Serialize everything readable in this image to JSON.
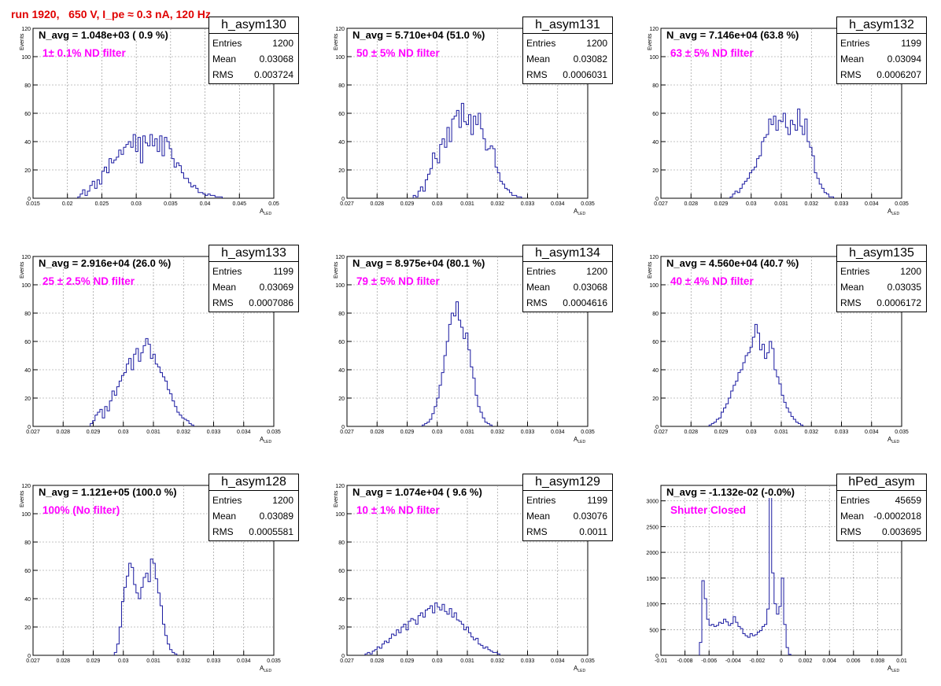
{
  "run_title": "run 1920,   650 V, I_pe ≈ 0.3 nA, 120 Hz",
  "colors": {
    "histogram": "#1a1aa0",
    "note": "#ff00ff",
    "title": "#e00000"
  },
  "chart_data": [
    {
      "type": "bar",
      "name": "h_asym130",
      "navg": "N_avg = 1.048e+03 ( 0.9 %)",
      "note": "1± 0.1% ND filter",
      "stats": {
        "entries": "1200",
        "mean": "0.03068",
        "rms": "0.003724"
      },
      "xlim": [
        0.015,
        0.05
      ],
      "ylim": [
        0,
        120
      ],
      "xticks": [
        "0.015",
        "0.02",
        "0.025",
        "0.03",
        "0.035",
        "0.04",
        "0.045",
        "0.05"
      ],
      "yticks": [
        "0",
        "20",
        "40",
        "60",
        "80",
        "100",
        "120"
      ],
      "xlabel": "A",
      "xlabel_sub": "LED",
      "ylabel": "Events",
      "bin_start": 0.0215,
      "bin_width": 0.00035,
      "values": [
        1,
        3,
        6,
        2,
        5,
        9,
        12,
        7,
        13,
        10,
        19,
        22,
        18,
        28,
        25,
        27,
        29,
        34,
        31,
        36,
        38,
        40,
        36,
        45,
        33,
        43,
        25,
        44,
        39,
        37,
        45,
        37,
        42,
        33,
        44,
        30,
        43,
        40,
        35,
        28,
        22,
        25,
        23,
        18,
        14,
        14,
        11,
        8,
        9,
        7,
        4,
        4,
        3,
        2,
        3,
        2,
        2,
        1,
        1,
        1
      ]
    },
    {
      "type": "bar",
      "name": "h_asym131",
      "navg": "N_avg = 5.710e+04 (51.0 %)",
      "note": "50 ± 5% ND filter",
      "stats": {
        "entries": "1200",
        "mean": "0.03082",
        "rms": "0.0006031"
      },
      "xlim": [
        0.027,
        0.035
      ],
      "ylim": [
        0,
        120
      ],
      "xticks": [
        "0.027",
        "0.028",
        "0.029",
        "0.03",
        "0.031",
        "0.032",
        "0.033",
        "0.034",
        "0.035"
      ],
      "yticks": [
        "0",
        "20",
        "40",
        "60",
        "80",
        "100",
        "120"
      ],
      "xlabel": "A",
      "xlabel_sub": "LED",
      "ylabel": "Events",
      "bin_start": 0.0292,
      "bin_width": 8e-05,
      "values": [
        2,
        1,
        5,
        8,
        5,
        13,
        17,
        21,
        32,
        28,
        25,
        38,
        42,
        36,
        50,
        40,
        56,
        58,
        62,
        50,
        67,
        54,
        52,
        59,
        45,
        58,
        52,
        60,
        49,
        42,
        34,
        35,
        37,
        35,
        22,
        18,
        12,
        10,
        7,
        6,
        4,
        2,
        2,
        1,
        1
      ]
    },
    {
      "type": "bar",
      "name": "h_asym132",
      "navg": "N_avg = 7.146e+04 (63.8 %)",
      "note": "63 ± 5% ND filter",
      "stats": {
        "entries": "1199",
        "mean": "0.03094",
        "rms": "0.0006207"
      },
      "xlim": [
        0.027,
        0.035
      ],
      "ylim": [
        0,
        120
      ],
      "xticks": [
        "0.027",
        "0.028",
        "0.029",
        "0.03",
        "0.031",
        "0.032",
        "0.033",
        "0.034",
        "0.035"
      ],
      "yticks": [
        "0",
        "20",
        "40",
        "60",
        "80",
        "100",
        "120"
      ],
      "xlabel": "A",
      "xlabel_sub": "LED",
      "ylabel": "Events",
      "bin_start": 0.0293,
      "bin_width": 8e-05,
      "values": [
        1,
        3,
        5,
        4,
        7,
        10,
        12,
        14,
        18,
        20,
        22,
        28,
        30,
        40,
        43,
        45,
        56,
        52,
        58,
        48,
        55,
        54,
        60,
        50,
        45,
        55,
        52,
        48,
        63,
        51,
        45,
        56,
        40,
        36,
        30,
        18,
        14,
        10,
        7,
        4,
        3,
        1,
        1
      ]
    },
    {
      "type": "bar",
      "name": "h_asym133",
      "navg": "N_avg = 2.916e+04 (26.0 %)",
      "note": "25 ± 2.5% ND filter",
      "stats": {
        "entries": "1199",
        "mean": "0.03069",
        "rms": "0.0007086"
      },
      "xlim": [
        0.027,
        0.035
      ],
      "ylim": [
        0,
        120
      ],
      "xticks": [
        "0.027",
        "0.028",
        "0.029",
        "0.03",
        "0.031",
        "0.032",
        "0.033",
        "0.034",
        "0.035"
      ],
      "yticks": [
        "0",
        "20",
        "40",
        "60",
        "80",
        "100",
        "120"
      ],
      "xlabel": "A",
      "xlabel_sub": "LED",
      "ylabel": "Events",
      "bin_start": 0.0289,
      "bin_width": 8e-05,
      "values": [
        2,
        4,
        8,
        10,
        12,
        6,
        14,
        11,
        18,
        25,
        22,
        28,
        32,
        36,
        38,
        44,
        48,
        40,
        51,
        55,
        46,
        52,
        57,
        62,
        58,
        48,
        51,
        44,
        42,
        38,
        35,
        32,
        26,
        23,
        18,
        14,
        10,
        8,
        6,
        5,
        4,
        2,
        1
      ]
    },
    {
      "type": "bar",
      "name": "h_asym134",
      "navg": "N_avg = 8.975e+04 (80.1 %)",
      "note": "79 ± 5% ND filter",
      "stats": {
        "entries": "1200",
        "mean": "0.03068",
        "rms": "0.0004616"
      },
      "xlim": [
        0.027,
        0.035
      ],
      "ylim": [
        0,
        120
      ],
      "xticks": [
        "0.027",
        "0.028",
        "0.029",
        "0.03",
        "0.031",
        "0.032",
        "0.033",
        "0.034",
        "0.035"
      ],
      "yticks": [
        "0",
        "20",
        "40",
        "60",
        "80",
        "100",
        "120"
      ],
      "xlabel": "A",
      "xlabel_sub": "LED",
      "ylabel": "Events",
      "bin_start": 0.0295,
      "bin_width": 8e-05,
      "values": [
        1,
        2,
        3,
        5,
        9,
        14,
        20,
        29,
        38,
        50,
        60,
        72,
        80,
        78,
        88,
        75,
        70,
        62,
        66,
        54,
        42,
        34,
        22,
        14,
        10,
        6,
        3,
        2,
        1
      ]
    },
    {
      "type": "bar",
      "name": "h_asym135",
      "navg": "N_avg = 4.560e+04 (40.7 %)",
      "note": "40 ± 4% ND filter",
      "stats": {
        "entries": "1200",
        "mean": "0.03035",
        "rms": "0.0006172"
      },
      "xlim": [
        0.027,
        0.035
      ],
      "ylim": [
        0,
        120
      ],
      "xticks": [
        "0.027",
        "0.028",
        "0.029",
        "0.03",
        "0.031",
        "0.032",
        "0.033",
        "0.034",
        "0.035"
      ],
      "yticks": [
        "0",
        "20",
        "40",
        "60",
        "80",
        "100",
        "120"
      ],
      "xlabel": "A",
      "xlabel_sub": "LED",
      "ylabel": "Events",
      "bin_start": 0.0286,
      "bin_width": 8e-05,
      "values": [
        1,
        2,
        3,
        5,
        6,
        10,
        13,
        16,
        20,
        25,
        29,
        32,
        38,
        40,
        45,
        50,
        52,
        56,
        63,
        72,
        66,
        54,
        58,
        48,
        52,
        60,
        55,
        40,
        35,
        30,
        22,
        17,
        13,
        10,
        7,
        5,
        3,
        2,
        1
      ]
    },
    {
      "type": "bar",
      "name": "h_asym128",
      "navg": "N_avg = 1.121e+05 (100.0 %)",
      "note": "100% (No filter)",
      "stats": {
        "entries": "1200",
        "mean": "0.03089",
        "rms": "0.0005581"
      },
      "xlim": [
        0.027,
        0.035
      ],
      "ylim": [
        0,
        120
      ],
      "xticks": [
        "0.027",
        "0.028",
        "0.029",
        "0.03",
        "0.031",
        "0.032",
        "0.033",
        "0.034",
        "0.035"
      ],
      "yticks": [
        "0",
        "20",
        "40",
        "60",
        "80",
        "100",
        "120"
      ],
      "xlabel": "A",
      "xlabel_sub": "LED",
      "ylabel": "Events",
      "bin_start": 0.0297,
      "bin_width": 8e-05,
      "values": [
        2,
        8,
        20,
        38,
        48,
        56,
        65,
        62,
        50,
        44,
        40,
        48,
        55,
        58,
        52,
        68,
        65,
        54,
        44,
        35,
        22,
        14,
        8,
        4,
        2,
        1
      ]
    },
    {
      "type": "bar",
      "name": "h_asym129",
      "navg": "N_avg = 1.074e+04 ( 9.6 %)",
      "note": "10 ± 1% ND filter",
      "stats": {
        "entries": "1199",
        "mean": "0.03076",
        "rms": "0.0011"
      },
      "xlim": [
        0.027,
        0.035
      ],
      "ylim": [
        0,
        120
      ],
      "xticks": [
        "0.027",
        "0.028",
        "0.029",
        "0.03",
        "0.031",
        "0.032",
        "0.033",
        "0.034",
        "0.035"
      ],
      "yticks": [
        "0",
        "20",
        "40",
        "60",
        "80",
        "100",
        "120"
      ],
      "xlabel": "A",
      "xlabel_sub": "LED",
      "ylabel": "Events",
      "bin_start": 0.0276,
      "bin_width": 8e-05,
      "values": [
        1,
        2,
        1,
        3,
        4,
        6,
        5,
        8,
        10,
        9,
        12,
        15,
        14,
        18,
        16,
        20,
        22,
        18,
        24,
        26,
        25,
        22,
        28,
        30,
        27,
        32,
        33,
        35,
        30,
        37,
        34,
        32,
        36,
        31,
        29,
        33,
        27,
        30,
        25,
        24,
        22,
        18,
        20,
        16,
        13,
        11,
        12,
        8,
        7,
        5,
        6,
        4,
        3,
        2,
        2,
        1
      ]
    },
    {
      "type": "bar",
      "name": "hPed_asym",
      "navg": "N_avg = -1.132e-02 (-0.0%)",
      "note": "Shutter Closed",
      "stats": {
        "entries": "45659",
        "mean": "-0.0002018",
        "rms": "0.003695"
      },
      "xlim": [
        -0.01,
        0.01
      ],
      "ylim": [
        0,
        3300
      ],
      "xticks": [
        "-0.01",
        "-0.008",
        "-0.006",
        "-0.004",
        "-0.002",
        "0",
        "0.002",
        "0.004",
        "0.006",
        "0.008",
        "0.01"
      ],
      "yticks": [
        "0",
        "500",
        "1000",
        "1500",
        "2000",
        "2500",
        "3000"
      ],
      "xlabel": "A",
      "xlabel_sub": "LED",
      "ylabel": "",
      "bin_start": -0.0068,
      "bin_width": 0.0002,
      "values": [
        250,
        1450,
        1100,
        700,
        580,
        600,
        560,
        580,
        640,
        620,
        700,
        650,
        580,
        620,
        750,
        640,
        560,
        520,
        420,
        380,
        350,
        420,
        380,
        400,
        450,
        480,
        560,
        600,
        900,
        3250,
        1600,
        1000,
        800,
        950,
        1500,
        600,
        150,
        20
      ]
    }
  ]
}
